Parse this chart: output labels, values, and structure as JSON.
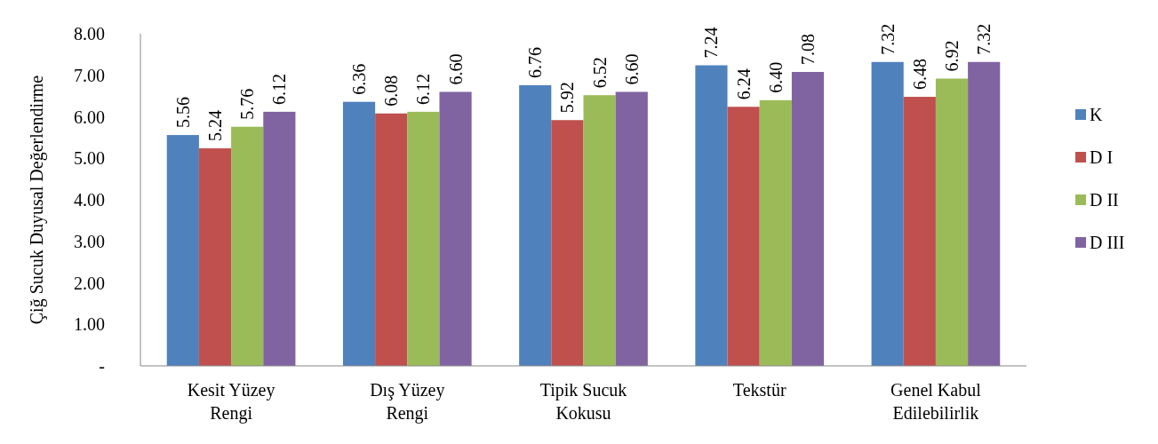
{
  "chart_data": {
    "type": "bar",
    "ylabel": "Çiğ  Sucuk Duyusal Değerlendirme",
    "categories": [
      "Kesit Yüzey Rengi",
      "Dış Yüzey Rengi",
      "Tipik Sucuk Kokusu",
      "Tekstür",
      "Genel Kabul Edilebilirlik"
    ],
    "series": [
      {
        "name": "K",
        "color": "#4f81bd",
        "values": [
          5.56,
          6.36,
          6.76,
          7.24,
          7.32
        ],
        "value_labels": [
          "5.56",
          "6.36",
          "6.76",
          "7.24",
          "7.32"
        ]
      },
      {
        "name": "D I",
        "color": "#c0504d",
        "values": [
          5.24,
          6.08,
          5.92,
          6.24,
          6.48
        ],
        "value_labels": [
          "5.24",
          "6.08",
          "5.92",
          "6.24",
          "6.48"
        ]
      },
      {
        "name": "D II",
        "color": "#9bbb59",
        "values": [
          5.76,
          6.12,
          6.52,
          6.4,
          6.92
        ],
        "value_labels": [
          "5.76",
          "6.12",
          "6.52",
          "6.40",
          "6.92"
        ]
      },
      {
        "name": "D III",
        "color": "#8064a2",
        "values": [
          6.12,
          6.6,
          6.6,
          7.08,
          7.32
        ],
        "value_labels": [
          "6.12",
          "6.60",
          "6.60",
          "7.08",
          "7.32"
        ]
      }
    ],
    "ylim": [
      0,
      8
    ],
    "yticks": [
      {
        "value": 0,
        "label": "-"
      },
      {
        "value": 1,
        "label": "1.00"
      },
      {
        "value": 2,
        "label": "2.00"
      },
      {
        "value": 3,
        "label": "3.00"
      },
      {
        "value": 4,
        "label": "4.00"
      },
      {
        "value": 5,
        "label": "5.00"
      },
      {
        "value": 6,
        "label": "6.00"
      },
      {
        "value": 7,
        "label": "7.00"
      },
      {
        "value": 8,
        "label": "8.00"
      }
    ],
    "legend": "right"
  }
}
